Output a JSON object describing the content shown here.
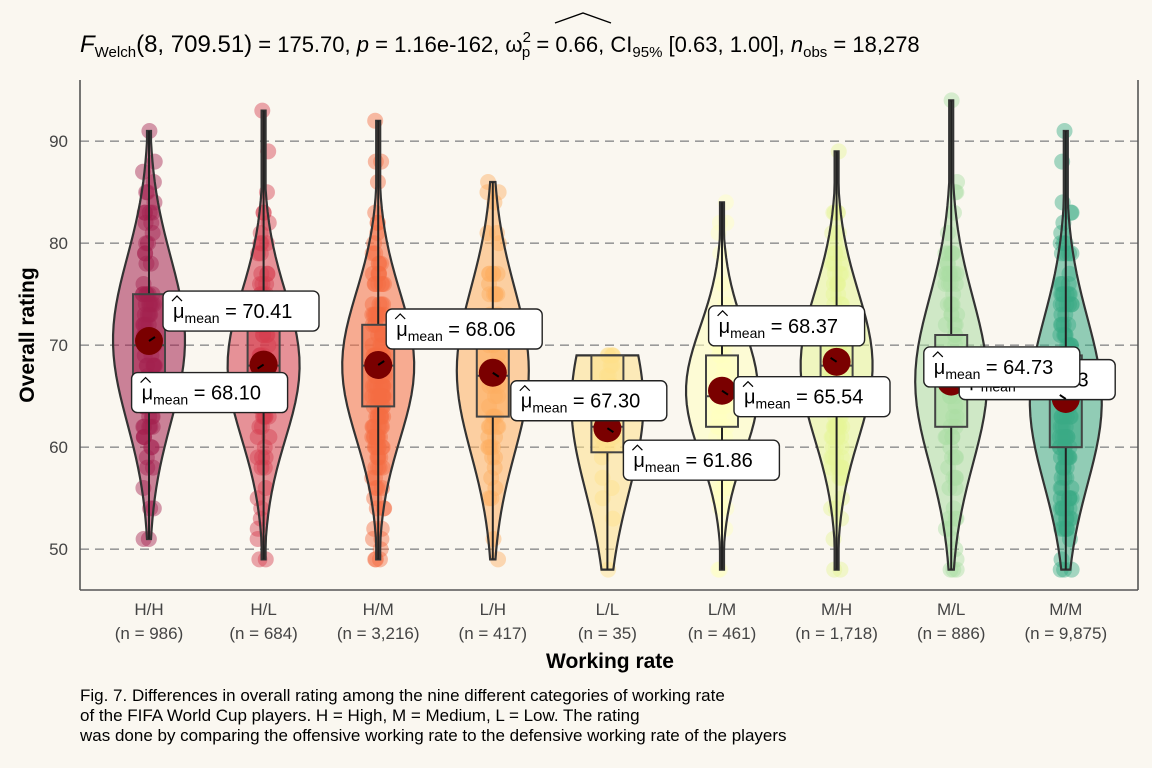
{
  "chart_data": {
    "type": "violin",
    "title_parts": {
      "F": "F",
      "F_sub": "Welch",
      "df": "(8, 709.51)",
      "F_value": " = 175.70, ",
      "p": "p",
      "p_value": " = 1.16e-162, ",
      "omega": "ω",
      "omega_sup": "2",
      "omega_sub": "p",
      "omega_value": " = 0.66, CI",
      "ci_sub": "95%",
      "ci_value": " [0.63, 1.00], ",
      "n": "n",
      "n_sub": "obs",
      "n_value": " = 18,278"
    },
    "xlabel": "Working rate",
    "ylabel": "Overall rating",
    "ylim": [
      46,
      96
    ],
    "yticks": [
      50,
      60,
      70,
      80,
      90
    ],
    "grid": "horizontal dashed",
    "mean_label_prefix": "μ",
    "mean_label_sub": "mean",
    "categories": [
      {
        "name": "H/H",
        "n_label": "(n = 986)",
        "mean": 70.41,
        "mean_label": "70.41",
        "q1": 66,
        "median": 70,
        "q3": 75,
        "min": 51,
        "max": 91,
        "color": "#a3214f",
        "label_side": "right"
      },
      {
        "name": "H/L",
        "n_label": "(n = 684)",
        "mean": 68.1,
        "mean_label": "68.10",
        "q1": 64,
        "median": 68,
        "q3": 72,
        "min": 49,
        "max": 93,
        "color": "#d53e4f",
        "label_side": "left"
      },
      {
        "name": "H/M",
        "n_label": "(n = 3,216)",
        "mean": 68.06,
        "mean_label": "68.06",
        "q1": 64,
        "median": 68,
        "q3": 72,
        "min": 49,
        "max": 92,
        "color": "#f46d43",
        "label_side": "right"
      },
      {
        "name": "L/H",
        "n_label": "(n = 417)",
        "mean": 67.3,
        "mean_label": "67.30",
        "q1": 63,
        "median": 67,
        "q3": 72,
        "min": 49,
        "max": 86,
        "color": "#fdae61",
        "label_side": "right"
      },
      {
        "name": "L/L",
        "n_label": "(n = 35)",
        "mean": 61.86,
        "mean_label": "61.86",
        "q1": 59.5,
        "median": 62,
        "q3": 69,
        "min": 48,
        "max": 69,
        "color": "#fee08b",
        "label_side": "right"
      },
      {
        "name": "L/M",
        "n_label": "(n = 461)",
        "mean": 65.54,
        "mean_label": "65.54",
        "q1": 62,
        "median": 65,
        "q3": 69,
        "min": 48,
        "max": 84,
        "color": "#ffffbf",
        "label_side": "right"
      },
      {
        "name": "M/H",
        "n_label": "(n = 1,718)",
        "mean": 68.37,
        "mean_label": "68.37",
        "q1": 64,
        "median": 68,
        "q3": 72,
        "min": 48,
        "max": 89,
        "color": "#e6f598",
        "label_side": "left"
      },
      {
        "name": "M/L",
        "n_label": "(n = 886)",
        "mean": 66.43,
        "mean_label": "66.43",
        "q1": 62,
        "median": 66,
        "q3": 71,
        "min": 48,
        "max": 94,
        "color": "#abdda4",
        "label_side": "right"
      },
      {
        "name": "M/M",
        "n_label": "(n = 9,875)",
        "mean": 64.73,
        "mean_label": "64.73",
        "q1": 60,
        "median": 65,
        "q3": 69,
        "min": 48,
        "max": 91,
        "color": "#3aaa85",
        "label_side": "left"
      }
    ]
  },
  "caption": {
    "line1": "Fig. 7. Differences in overall rating among the nine different categories of working rate",
    "line2": "of the FIFA World Cup players. H = High, M = Medium, L = Low. The rating",
    "line3": "was done by comparing the offensive working rate to the defensive working rate of the players"
  }
}
